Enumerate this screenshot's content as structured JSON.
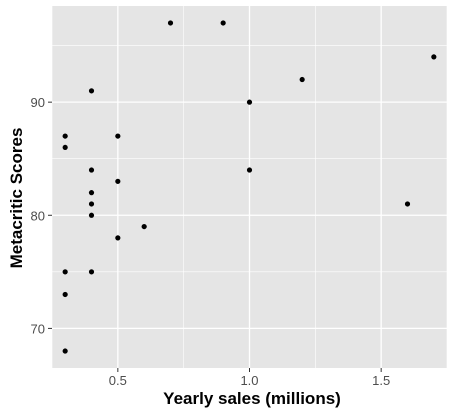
{
  "chart_data": {
    "type": "scatter",
    "title": "",
    "xlabel": "Yearly sales (millions)",
    "ylabel": "Metacritic Scores",
    "xlim": [
      0.25,
      1.75
    ],
    "ylim": [
      66.5,
      98.5
    ],
    "x_ticks": [
      {
        "value": 0.5,
        "label": "0.5"
      },
      {
        "value": 1.0,
        "label": "1.0"
      },
      {
        "value": 1.5,
        "label": "1.5"
      }
    ],
    "y_ticks": [
      {
        "value": 70,
        "label": "70"
      },
      {
        "value": 80,
        "label": "80"
      },
      {
        "value": 90,
        "label": "90"
      }
    ],
    "x_minor_ticks": [
      0.25,
      0.75,
      1.25,
      1.75
    ],
    "y_minor_ticks": [
      75,
      85,
      95
    ],
    "grid": true,
    "colors": {
      "panel": "#E5E5E5",
      "grid": "#FFFFFF",
      "point": "#000000",
      "axis_text": "#4D4D4D",
      "title_text": "#000000"
    },
    "points": [
      {
        "x": 0.3,
        "y": 68
      },
      {
        "x": 0.3,
        "y": 73
      },
      {
        "x": 0.3,
        "y": 75
      },
      {
        "x": 0.3,
        "y": 86
      },
      {
        "x": 0.3,
        "y": 87
      },
      {
        "x": 0.4,
        "y": 75
      },
      {
        "x": 0.4,
        "y": 80
      },
      {
        "x": 0.4,
        "y": 81
      },
      {
        "x": 0.4,
        "y": 82
      },
      {
        "x": 0.4,
        "y": 84
      },
      {
        "x": 0.4,
        "y": 91
      },
      {
        "x": 0.5,
        "y": 78
      },
      {
        "x": 0.5,
        "y": 83
      },
      {
        "x": 0.5,
        "y": 87
      },
      {
        "x": 0.6,
        "y": 79
      },
      {
        "x": 0.7,
        "y": 97
      },
      {
        "x": 0.9,
        "y": 97
      },
      {
        "x": 1.0,
        "y": 84
      },
      {
        "x": 1.0,
        "y": 90
      },
      {
        "x": 1.2,
        "y": 92
      },
      {
        "x": 1.6,
        "y": 81
      },
      {
        "x": 1.7,
        "y": 94
      }
    ]
  }
}
